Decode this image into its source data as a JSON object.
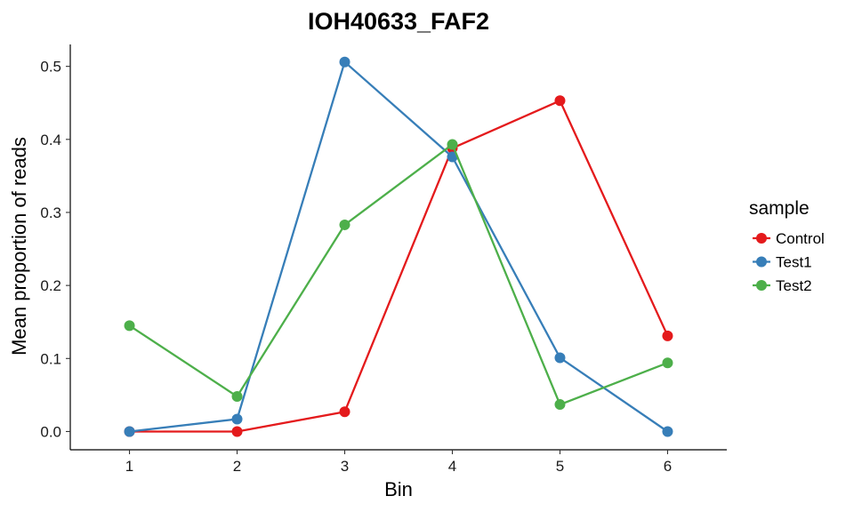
{
  "chart_data": {
    "type": "line",
    "title": "IOH40633_FAF2",
    "xlabel": "Bin",
    "ylabel": "Mean proportion of reads",
    "x": [
      1,
      2,
      3,
      4,
      5,
      6
    ],
    "xticks": [
      "1",
      "2",
      "3",
      "4",
      "5",
      "6"
    ],
    "xlim": [
      0.45,
      6.55
    ],
    "ylim": [
      -0.025,
      0.53
    ],
    "yticks": [
      "0.0",
      "0.1",
      "0.2",
      "0.3",
      "0.4",
      "0.5"
    ],
    "ytick_values": [
      0.0,
      0.1,
      0.2,
      0.3,
      0.4,
      0.5
    ],
    "grid": false,
    "legend": {
      "title": "sample",
      "position": "right"
    },
    "series": [
      {
        "name": "Control",
        "color": "#e41a1c",
        "values": [
          0.0,
          0.0,
          0.027,
          0.388,
          0.453,
          0.131
        ]
      },
      {
        "name": "Test1",
        "color": "#377eb8",
        "values": [
          0.0,
          0.017,
          0.506,
          0.376,
          0.101,
          0.0
        ]
      },
      {
        "name": "Test2",
        "color": "#4daf4a",
        "values": [
          0.145,
          0.048,
          0.283,
          0.393,
          0.037,
          0.094
        ]
      }
    ]
  }
}
